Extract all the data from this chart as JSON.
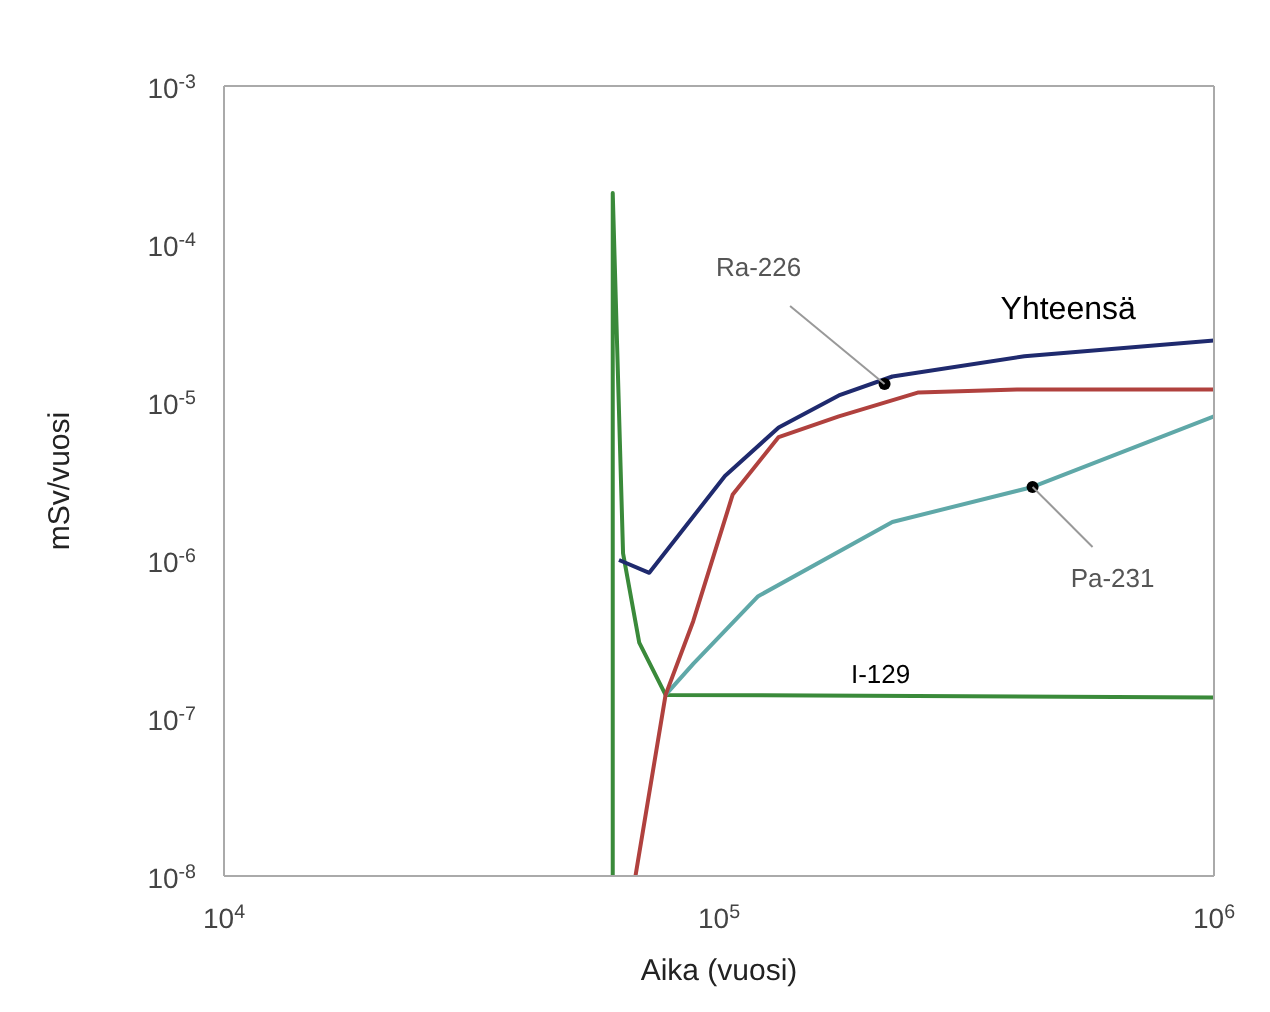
{
  "chart_data": {
    "type": "line",
    "xlabel": "Aika (vuosi)",
    "ylabel": "mSv/vuosi",
    "log": "xy",
    "marker": "none",
    "line_style": "solid",
    "xlim": [
      10000,
      1000000
    ],
    "ylim": [
      1e-08,
      0.001
    ],
    "xticks": [
      {
        "value": 10000,
        "label": "10$^{4}$"
      },
      {
        "value": 100000,
        "label": "10$^{5}$"
      },
      {
        "value": 1000000,
        "label": "10$^{6}$"
      }
    ],
    "yticks": [
      {
        "value": 1e-08,
        "label": "10$^{-8}$"
      },
      {
        "value": 1e-07,
        "label": "10$^{-7}$"
      },
      {
        "value": 1e-06,
        "label": "10$^{-6}$"
      },
      {
        "value": 1e-05,
        "label": "10$^{-5}$"
      },
      {
        "value": 0.0001,
        "label": "10$^{-4}$"
      },
      {
        "value": 0.001,
        "label": "10$^{-3}$"
      }
    ],
    "series": [
      {
        "color": "#3a8a3a",
        "x": [
          61000,
          61000,
          64000,
          69000,
          78000,
          1000000
        ],
        "values": [
          1e-08,
          0.00021,
          1.1e-06,
          3e-07,
          1.4e-07,
          1.35e-07
        ]
      },
      {
        "color": "#5fa8a8",
        "x": [
          78000,
          88700,
          120000,
          224000,
          430000,
          1000000
        ],
        "values": [
          1.4e-07,
          2.2e-07,
          5.9e-07,
          1.74e-06,
          2.9e-06,
          8.1e-06
        ]
      },
      {
        "color": "#b0413e",
        "x": [
          67800,
          78000,
          88700,
          106600,
          132000,
          174600,
          253000,
          400000,
          1000000
        ],
        "values": [
          1e-08,
          1.4e-07,
          4.1e-07,
          2.6e-06,
          6e-06,
          8.1e-06,
          1.15e-05,
          1.2e-05,
          1.2e-05
        ]
      },
      {
        "color": "#1f2a6e",
        "x": [
          62800,
          72300,
          102800,
          132000,
          174600,
          224000,
          414000,
          1000000
        ],
        "values": [
          1e-06,
          8.3e-07,
          3.4e-06,
          6.9e-06,
          1.1e-05,
          1.45e-05,
          1.95e-05,
          2.45e-05
        ]
      }
    ],
    "annotations": [
      {
        "text": "Ra-226",
        "x": 216000,
        "y": 1.3e-05
      },
      {
        "text": "Yhteensä",
        "x": 557000,
        "y": 2.1e-05
      },
      {
        "text": "Pa-231",
        "x": 430000,
        "y": 2.9e-06
      },
      {
        "text": "I-129",
        "x": 216000,
        "y": 1.4e-07
      }
    ]
  }
}
